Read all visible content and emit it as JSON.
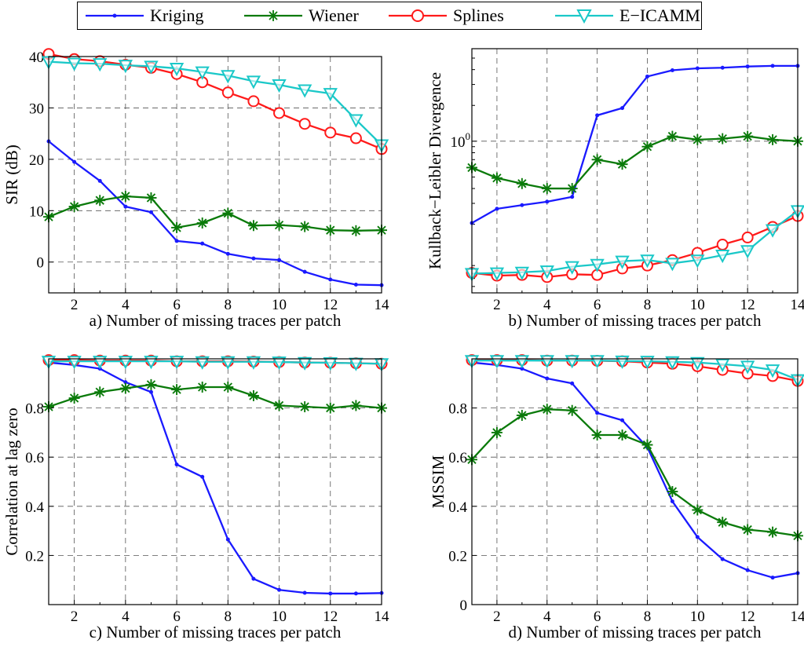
{
  "legend": {
    "entries": [
      {
        "name": "Kriging",
        "color": "#1a1aff",
        "marker": "dot"
      },
      {
        "name": "Wiener",
        "color": "#0a7a0a",
        "marker": "star"
      },
      {
        "name": "Splines",
        "color": "#ff1a1a",
        "marker": "circle"
      },
      {
        "name": "E−ICAMM",
        "color": "#1ac8c8",
        "marker": "triangle-down"
      }
    ]
  },
  "chart_data": [
    {
      "id": "a",
      "type": "line",
      "xlabel": "a) Number of missing traces per patch",
      "ylabel": "SIR (dB)",
      "xlim": [
        1,
        14
      ],
      "ylim": [
        -6,
        40
      ],
      "yscale": "linear",
      "xticks": [
        2,
        4,
        6,
        8,
        10,
        12,
        14
      ],
      "yticks": [
        0,
        10,
        20,
        30,
        40
      ],
      "ytick_labels": [
        "0",
        "10",
        "20",
        "30",
        "40"
      ],
      "grid": true,
      "x": [
        1,
        2,
        3,
        4,
        5,
        6,
        7,
        8,
        9,
        10,
        11,
        12,
        13,
        14
      ],
      "series": [
        {
          "name": "Kriging",
          "values": [
            23.5,
            19.5,
            15.8,
            10.8,
            9.7,
            4.1,
            3.6,
            1.6,
            0.7,
            0.4,
            -1.9,
            -3.4,
            -4.4,
            -4.5
          ]
        },
        {
          "name": "Wiener",
          "values": [
            8.8,
            10.8,
            12.0,
            12.8,
            12.5,
            6.7,
            7.6,
            9.5,
            7.1,
            7.2,
            6.9,
            6.2,
            6.1,
            6.2
          ]
        },
        {
          "name": "Splines",
          "values": [
            40.5,
            39.5,
            39.1,
            38.4,
            37.8,
            36.6,
            35.0,
            33.0,
            31.3,
            29.0,
            26.9,
            25.2,
            24.1,
            22.0
          ]
        },
        {
          "name": "E−ICAMM",
          "values": [
            39.0,
            38.7,
            38.6,
            38.3,
            38.1,
            37.7,
            37.0,
            36.3,
            35.2,
            34.5,
            33.5,
            32.8,
            27.7,
            22.8
          ]
        }
      ]
    },
    {
      "id": "b",
      "type": "line",
      "xlabel": "b) Number of missing traces per patch",
      "ylabel": "Kullback−Leibler Divergence",
      "xlim": [
        1,
        14
      ],
      "ylim": [
        0.053,
        6.0
      ],
      "yscale": "log",
      "xticks": [
        2,
        4,
        6,
        8,
        10,
        12,
        14
      ],
      "yticks": [
        1
      ],
      "ytick_labels": [
        "10"
      ],
      "ytick_exponent": "0",
      "grid": true,
      "x": [
        1,
        2,
        3,
        4,
        5,
        6,
        7,
        8,
        9,
        10,
        11,
        12,
        13,
        14
      ],
      "series": [
        {
          "name": "Kriging",
          "values": [
            0.205,
            0.27,
            0.29,
            0.31,
            0.34,
            1.65,
            1.9,
            3.5,
            3.95,
            4.1,
            4.15,
            4.25,
            4.3,
            4.3
          ]
        },
        {
          "name": "Wiener",
          "values": [
            0.6,
            0.49,
            0.44,
            0.4,
            0.4,
            0.7,
            0.64,
            0.9,
            1.1,
            1.03,
            1.05,
            1.1,
            1.03,
            1.0
          ]
        },
        {
          "name": "Splines",
          "values": [
            0.078,
            0.074,
            0.075,
            0.072,
            0.076,
            0.075,
            0.085,
            0.09,
            0.1,
            0.115,
            0.135,
            0.155,
            0.19,
            0.235
          ]
        },
        {
          "name": "E−ICAMM",
          "values": [
            0.077,
            0.078,
            0.079,
            0.081,
            0.088,
            0.092,
            0.098,
            0.1,
            0.094,
            0.1,
            0.11,
            0.12,
            0.18,
            0.26
          ]
        }
      ]
    },
    {
      "id": "c",
      "type": "line",
      "xlabel": "c) Number of missing traces per patch",
      "ylabel": "Correlation at lag zero",
      "xlim": [
        1,
        14
      ],
      "ylim": [
        0,
        1.0
      ],
      "yscale": "linear",
      "xticks": [
        2,
        4,
        6,
        8,
        10,
        12,
        14
      ],
      "yticks": [
        0.2,
        0.4,
        0.6,
        0.8
      ],
      "ytick_labels": [
        "0.2",
        "0.4",
        "0.6",
        "0.8"
      ],
      "grid": true,
      "x": [
        1,
        2,
        3,
        4,
        5,
        6,
        7,
        8,
        9,
        10,
        11,
        12,
        13,
        14
      ],
      "series": [
        {
          "name": "Kriging",
          "values": [
            0.985,
            0.975,
            0.96,
            0.905,
            0.865,
            0.57,
            0.52,
            0.265,
            0.105,
            0.06,
            0.048,
            0.045,
            0.045,
            0.047
          ]
        },
        {
          "name": "Wiener",
          "values": [
            0.805,
            0.84,
            0.865,
            0.88,
            0.895,
            0.875,
            0.885,
            0.885,
            0.85,
            0.81,
            0.805,
            0.8,
            0.81,
            0.8
          ]
        },
        {
          "name": "Splines",
          "values": [
            0.995,
            0.995,
            0.993,
            0.993,
            0.993,
            0.99,
            0.99,
            0.99,
            0.989,
            0.987,
            0.985,
            0.984,
            0.982,
            0.98
          ]
        },
        {
          "name": "E−ICAMM",
          "values": [
            0.99,
            0.99,
            0.99,
            0.99,
            0.99,
            0.99,
            0.988,
            0.988,
            0.988,
            0.987,
            0.985,
            0.984,
            0.982,
            0.98
          ]
        }
      ]
    },
    {
      "id": "d",
      "type": "line",
      "xlabel": "d) Number of missing traces per patch",
      "ylabel": "MSSIM",
      "xlim": [
        1,
        14
      ],
      "ylim": [
        0,
        1.0
      ],
      "yscale": "linear",
      "xticks": [
        2,
        4,
        6,
        8,
        10,
        12,
        14
      ],
      "yticks": [
        0,
        0.2,
        0.4,
        0.6,
        0.8
      ],
      "ytick_labels": [
        "0",
        "0.2",
        "0.4",
        "0.6",
        "0.8"
      ],
      "grid": true,
      "x": [
        1,
        2,
        3,
        4,
        5,
        6,
        7,
        8,
        9,
        10,
        11,
        12,
        13,
        14
      ],
      "series": [
        {
          "name": "Kriging",
          "values": [
            0.985,
            0.975,
            0.96,
            0.92,
            0.9,
            0.78,
            0.75,
            0.64,
            0.42,
            0.275,
            0.185,
            0.14,
            0.11,
            0.128
          ]
        },
        {
          "name": "Wiener",
          "values": [
            0.59,
            0.7,
            0.77,
            0.795,
            0.79,
            0.69,
            0.69,
            0.65,
            0.46,
            0.385,
            0.335,
            0.305,
            0.295,
            0.28
          ]
        },
        {
          "name": "Splines",
          "values": [
            0.995,
            0.995,
            0.995,
            0.993,
            0.993,
            0.992,
            0.99,
            0.985,
            0.98,
            0.97,
            0.955,
            0.94,
            0.93,
            0.91
          ]
        },
        {
          "name": "E−ICAMM",
          "values": [
            0.993,
            0.993,
            0.993,
            0.993,
            0.993,
            0.993,
            0.991,
            0.99,
            0.988,
            0.985,
            0.978,
            0.97,
            0.955,
            0.915
          ]
        }
      ]
    }
  ]
}
